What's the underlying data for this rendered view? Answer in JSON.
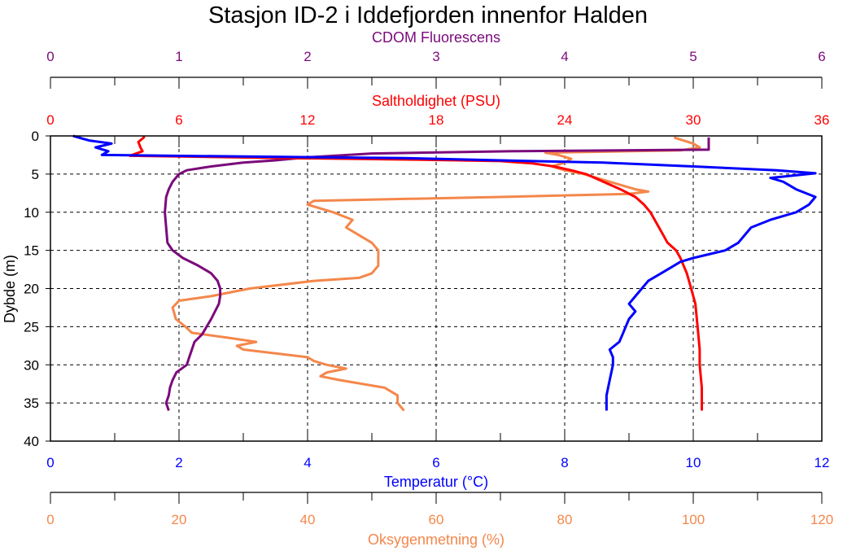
{
  "chart_data": {
    "type": "line",
    "title": "Stasjon ID-2 i Iddefjorden innenfor Halden",
    "ylabel": "Dybde (m)",
    "ylim": [
      0,
      40
    ],
    "yticks": [
      0,
      5,
      10,
      15,
      20,
      25,
      30,
      35,
      40
    ],
    "grid": true,
    "axes": [
      {
        "id": "cdom",
        "label": "CDOM Fluorescens",
        "color": "#7b0a7b",
        "position": "top-outer",
        "range": [
          0,
          6
        ],
        "ticks": [
          0,
          1,
          2,
          3,
          4,
          5,
          6
        ]
      },
      {
        "id": "sal",
        "label": "Saltholdighet (PSU)",
        "color": "#ff0000",
        "position": "top",
        "range": [
          0,
          36
        ],
        "ticks": [
          0,
          6,
          12,
          18,
          24,
          30,
          36
        ]
      },
      {
        "id": "temp",
        "label": "Temperatur (°C)",
        "color": "#0000ff",
        "position": "bottom",
        "range": [
          0,
          12
        ],
        "ticks": [
          0,
          2,
          4,
          6,
          8,
          10,
          12
        ]
      },
      {
        "id": "oxy",
        "label": "Oksygenmetning (%)",
        "color": "#f4874b",
        "position": "bottom-outer",
        "range": [
          0,
          120
        ],
        "ticks": [
          0,
          20,
          40,
          60,
          80,
          100,
          120
        ]
      }
    ],
    "series": [
      {
        "name": "Oksygenmetning",
        "axis": "oxy",
        "color": "#f4874b",
        "depth": [
          0.2,
          1,
          1.5,
          1.9,
          2.2,
          2.5,
          3,
          3.5,
          4,
          4.5,
          5,
          5.5,
          6,
          7,
          7.3,
          7.6,
          8,
          8.5,
          9,
          10,
          11,
          12,
          13,
          14,
          15,
          16,
          17,
          18,
          18.6,
          19,
          20,
          21,
          21.6,
          22.5,
          24,
          25,
          25.8,
          26.5,
          27,
          27.5,
          28,
          29,
          29.5,
          30,
          30.5,
          31,
          31.5,
          32,
          33,
          34,
          35,
          36
        ],
        "values": [
          97,
          100,
          101,
          98,
          77,
          79,
          81,
          80,
          78,
          80,
          83,
          85,
          87,
          91,
          93,
          90,
          70,
          41,
          40,
          44,
          47,
          46,
          48,
          50,
          51,
          51,
          51,
          50,
          48,
          41,
          31,
          25,
          20,
          19,
          19.5,
          21,
          22,
          28,
          32,
          29,
          30,
          40,
          41,
          43,
          46,
          43,
          42,
          45,
          52,
          54,
          54,
          55
        ]
      },
      {
        "name": "CDOM",
        "axis": "cdom",
        "color": "#7b0a7b",
        "depth": [
          0.2,
          1,
          1.8,
          2.0,
          2.3,
          2.8,
          3.2,
          3.5,
          4,
          4.5,
          5,
          6,
          7,
          8,
          10,
          12,
          14,
          15,
          16,
          17,
          18,
          19,
          20,
          21,
          22,
          24,
          26,
          27,
          28,
          29,
          30,
          31,
          32,
          33,
          34,
          35,
          36
        ],
        "values": [
          5.12,
          5.12,
          5.12,
          3.6,
          2.5,
          2.0,
          1.75,
          1.5,
          1.25,
          1.06,
          1.0,
          0.95,
          0.92,
          0.9,
          0.89,
          0.9,
          0.91,
          0.95,
          1.03,
          1.15,
          1.25,
          1.3,
          1.32,
          1.32,
          1.31,
          1.25,
          1.18,
          1.12,
          1.1,
          1.08,
          1.06,
          0.98,
          0.95,
          0.93,
          0.92,
          0.9,
          0.92
        ]
      },
      {
        "name": "Saltholdighet",
        "axis": "sal",
        "color": "#ff0000",
        "depth": [
          0.1,
          0.8,
          1.5,
          2.0,
          2.6,
          2.9,
          3.1,
          3.3,
          3.6,
          4.0,
          4.5,
          5,
          6,
          7,
          8,
          9,
          10,
          12,
          14,
          15,
          16,
          18,
          20,
          22,
          25,
          28,
          30,
          33,
          36
        ],
        "values": [
          4.4,
          4.1,
          4.2,
          4.3,
          3.7,
          11,
          17,
          21,
          22.5,
          23.5,
          24.3,
          25,
          25.8,
          26.6,
          27.3,
          27.7,
          28,
          28.4,
          28.8,
          29.2,
          29.4,
          29.7,
          29.9,
          30.1,
          30.2,
          30.3,
          30.3,
          30.4,
          30.4
        ]
      },
      {
        "name": "Temperatur",
        "axis": "temp",
        "color": "#0000ff",
        "depth": [
          0,
          0.6,
          1.0,
          1.5,
          2.0,
          2.5,
          2.7,
          2.9,
          3.2,
          3.5,
          4.0,
          4.5,
          4.9,
          5.5,
          6,
          7,
          8,
          9,
          10,
          11,
          12,
          13,
          14,
          15,
          16,
          16.5,
          17,
          18,
          19,
          20,
          21,
          22,
          23,
          24,
          25,
          26,
          27,
          28,
          29,
          30,
          32,
          34,
          36
        ],
        "values": [
          0.35,
          0.6,
          0.95,
          0.7,
          0.9,
          0.8,
          3,
          5.5,
          7,
          8.6,
          10,
          11.3,
          11.9,
          11.2,
          11.4,
          11.6,
          11.9,
          11.8,
          11.6,
          11.2,
          10.9,
          10.8,
          10.7,
          10.5,
          10,
          9.8,
          9.7,
          9.5,
          9.3,
          9.2,
          9.1,
          9.0,
          9.1,
          9.0,
          8.95,
          8.9,
          8.85,
          8.7,
          8.75,
          8.75,
          8.7,
          8.65,
          8.65
        ]
      }
    ]
  }
}
